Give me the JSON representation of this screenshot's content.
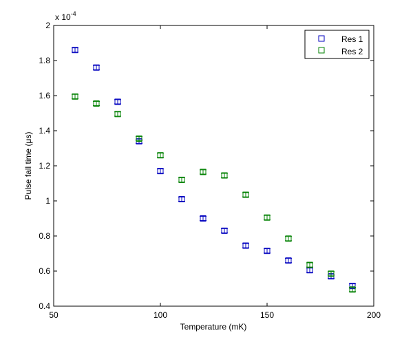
{
  "chart_data": {
    "type": "scatter",
    "xlabel": "Temperature (mK)",
    "ylabel_prefix": "Pulse fall time (",
    "ylabel_mu": "μ",
    "ylabel_suffix": "s)",
    "exponent_base": "x 10",
    "exponent_power": "-4",
    "xlim": [
      50,
      200
    ],
    "ylim": [
      0.4,
      2.0
    ],
    "y_multiplier": 0.0001,
    "grid": false,
    "legend_position": "top-right",
    "marker": "square",
    "error_bars": true,
    "x_ticks": [
      "50",
      "100",
      "150",
      "200"
    ],
    "y_ticks": [
      "0.4",
      "0.6",
      "0.8",
      "1",
      "1.2",
      "1.4",
      "1.6",
      "1.8",
      "2"
    ],
    "x": [
      60,
      70,
      80,
      90,
      100,
      110,
      120,
      130,
      140,
      150,
      160,
      170,
      180,
      190
    ],
    "series": [
      {
        "name": "Res 1",
        "color": "#0000bf",
        "values": [
          1.86,
          1.76,
          1.565,
          1.34,
          1.17,
          1.01,
          0.9,
          0.83,
          0.745,
          0.715,
          0.66,
          0.605,
          0.57,
          0.515
        ],
        "errors": [
          0.012,
          0.012,
          0.012,
          0.012,
          0.012,
          0.012,
          0.012,
          0.012,
          0.012,
          0.012,
          0.012,
          0.012,
          0.012,
          0.012
        ]
      },
      {
        "name": "Res 2",
        "color": "#008000",
        "values": [
          1.595,
          1.555,
          1.495,
          1.355,
          1.26,
          1.12,
          1.165,
          1.145,
          1.035,
          0.905,
          0.785,
          0.635,
          0.585,
          0.495
        ],
        "errors": [
          0.012,
          0.012,
          0.012,
          0.012,
          0.012,
          0.012,
          0.012,
          0.012,
          0.012,
          0.012,
          0.012,
          0.012,
          0.012,
          0.012
        ]
      }
    ]
  }
}
